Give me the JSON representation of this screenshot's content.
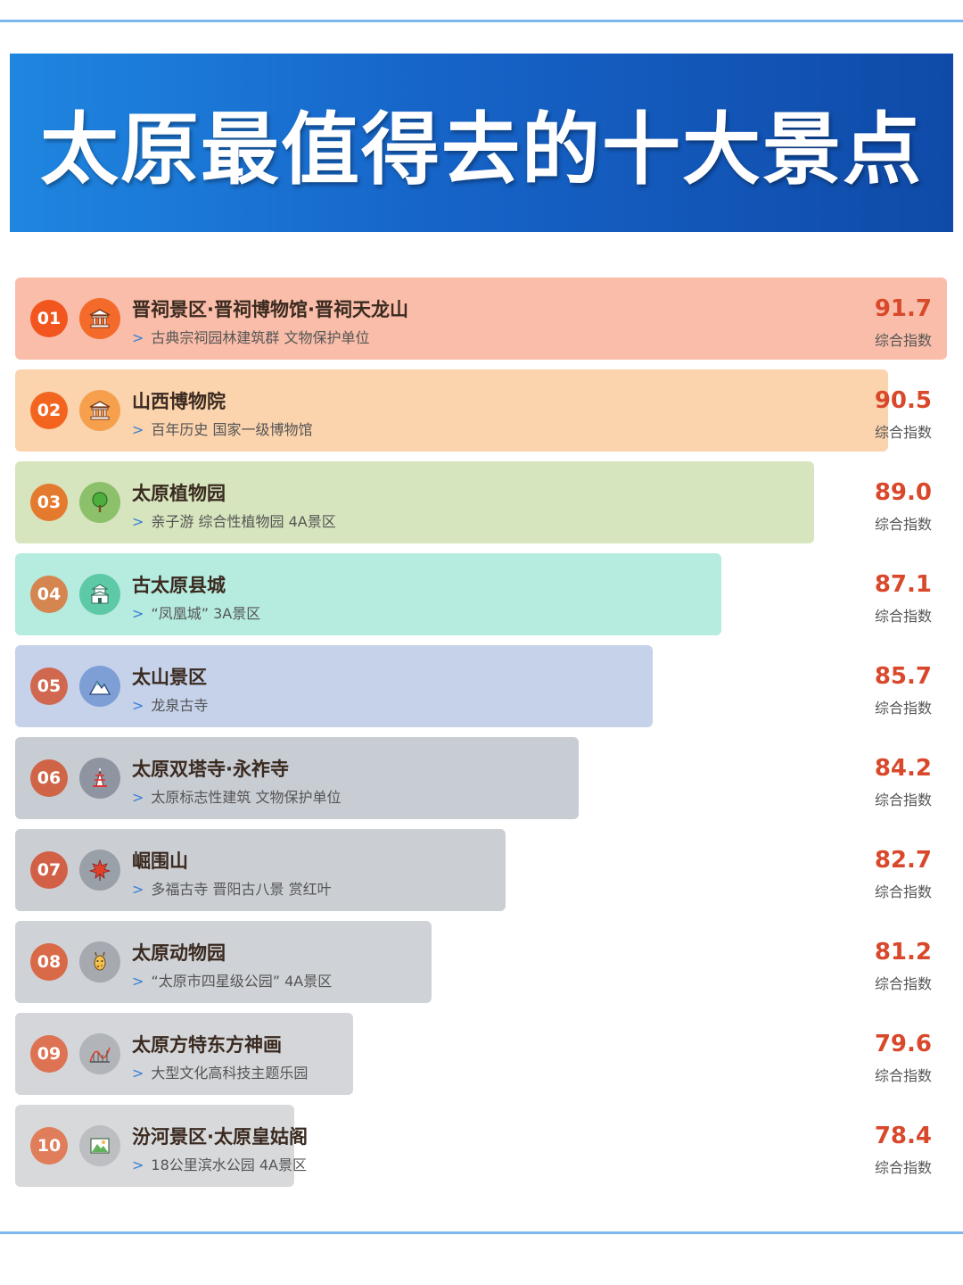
{
  "title": "太原最值得去的十大景点",
  "score_label": "综合指数",
  "chart_data": {
    "type": "bar",
    "categories": [
      "晋祠景区·晋祠博物馆·晋祠天龙山",
      "山西博物院",
      "太原植物园",
      "古太原县城",
      "太山景区",
      "太原双塔寺·永祚寺",
      "崛围山",
      "太原动物园",
      "太原方特东方神画",
      "汾河景区·太原皇姑阁"
    ],
    "values": [
      91.7,
      90.5,
      89.0,
      87.1,
      85.7,
      84.2,
      82.7,
      81.2,
      79.6,
      78.4
    ],
    "value_labels": [
      "91.7",
      "90.5",
      "89.0",
      "87.1",
      "85.7",
      "84.2",
      "82.7",
      "81.2",
      "79.6",
      "78.4"
    ],
    "ranks": [
      "01",
      "02",
      "03",
      "04",
      "05",
      "06",
      "07",
      "08",
      "09",
      "10"
    ],
    "descriptions": [
      "古典宗祠园林建筑群 文物保护单位",
      "百年历史 国家一级博物馆",
      "亲子游 综合性植物园 4A景区",
      "“凤凰城” 3A景区",
      "龙泉古寺",
      "太原标志性建筑 文物保护单位",
      "多福古寺 晋阳古八景 赏红叶",
      "“太原市四星级公园” 4A景区",
      "大型文化高科技主题乐园",
      "18公里滨水公园 4A景区"
    ],
    "icons": [
      "museum-icon",
      "museum-icon",
      "tree-icon",
      "ancient-city-icon",
      "mountain-icon",
      "pagoda-icon",
      "maple-leaf-icon",
      "giraffe-icon",
      "theme-park-icon",
      "landscape-icon"
    ],
    "bar_colors": [
      "#f9bda9",
      "#fbd3ad",
      "#d6e5bd",
      "#b6ebdf",
      "#c5d2ea",
      "#c8ccd3",
      "#cbcfd4",
      "#cfd2d6",
      "#d4d6d9",
      "#d8d9db"
    ],
    "rank_colors": [
      "#f2551e",
      "#f3651f",
      "#e47a2e",
      "#d58550",
      "#d0684f",
      "#cf6446",
      "#d16046",
      "#d96a48",
      "#dd7352",
      "#e07d5a"
    ],
    "icon_bg_colors": [
      "#f36a2a",
      "#f6a04d",
      "#8cc06b",
      "#5ec9a6",
      "#7d9fd6",
      "#8e95a1",
      "#9aa0a8",
      "#a6aab0",
      "#b1b4b8",
      "#bcbec1"
    ],
    "score_color": "#d9482b"
  }
}
